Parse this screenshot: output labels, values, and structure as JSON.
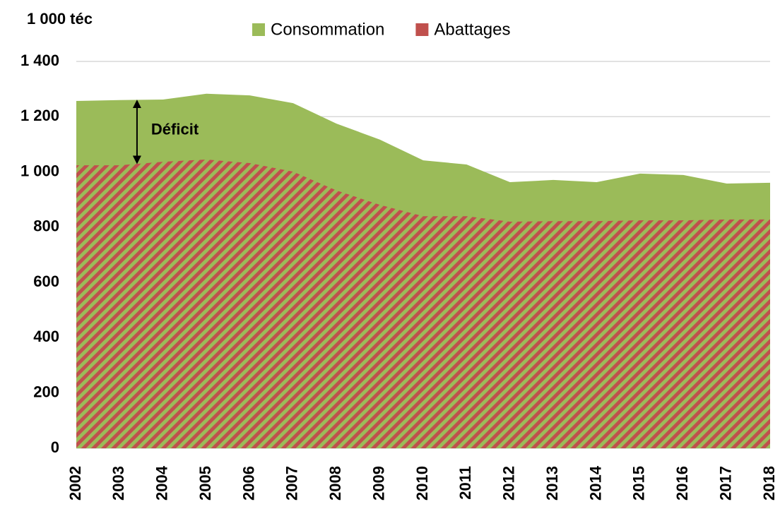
{
  "chart_data": {
    "type": "area",
    "y_axis_label": "1 000 téc",
    "categories": [
      "2002",
      "2003",
      "2004",
      "2005",
      "2006",
      "2007",
      "2008",
      "2009",
      "2010",
      "2011",
      "2012",
      "2013",
      "2014",
      "2015",
      "2016",
      "2017",
      "2018"
    ],
    "series": [
      {
        "name": "Consommation",
        "color": "#9bbb59",
        "values": [
          1257,
          1260,
          1262,
          1283,
          1277,
          1249,
          1175,
          1117,
          1042,
          1027,
          963,
          971,
          963,
          994,
          989,
          958,
          961
        ]
      },
      {
        "name": "Abattages",
        "color": "#c0504d",
        "values": [
          1024,
          1024,
          1037,
          1045,
          1032,
          1001,
          933,
          881,
          840,
          840,
          820,
          822,
          822,
          825,
          825,
          828,
          828
        ]
      }
    ],
    "annotation": "Déficit",
    "ylim": [
      0,
      1400
    ],
    "yticks": [
      0,
      200,
      400,
      600,
      800,
      {
        "value": 1000,
        "label": "1 000"
      },
      {
        "value": 1200,
        "label": "1 200"
      },
      {
        "value": 1400,
        "label": "1 400"
      }
    ],
    "grid": true
  }
}
